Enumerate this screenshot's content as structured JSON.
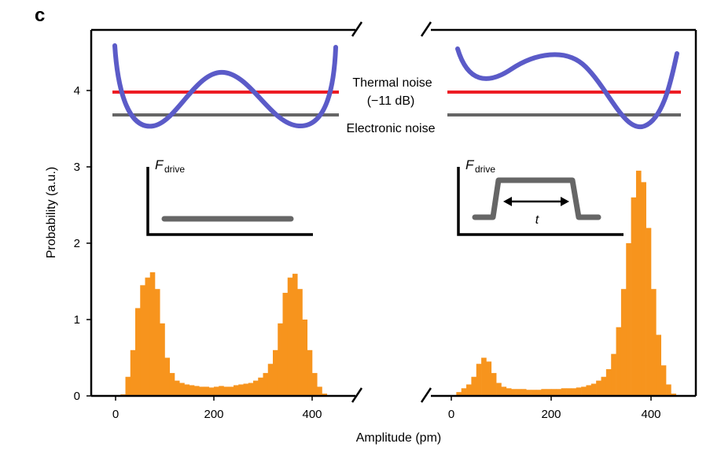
{
  "panel_label": "c",
  "chart_data": {
    "type": "bar",
    "title": "",
    "xlabel": "Amplitude (pm)",
    "ylabel": "Probability (a.u.)",
    "ylim": [
      0,
      4.8
    ],
    "yticks": [
      0,
      1,
      2,
      3,
      4
    ],
    "grid": false,
    "axis_break": true,
    "colors": {
      "histogram": "#f7941d",
      "thermal_noise": "#ed1c24",
      "electronic_noise": "#666666",
      "potential": "#5b5bc8",
      "pulse": "#666666"
    },
    "annotations": {
      "thermal_noise": "Thermal noise",
      "thermal_db": "(−11 dB)",
      "electronic_noise": "Electronic noise"
    },
    "panels": [
      {
        "xlim": [
          -15,
          450
        ],
        "xticks": [
          0,
          200,
          400
        ],
        "drive_label": {
          "main": "F",
          "sub": "drive"
        },
        "pulse": "constant",
        "thermal_noise_level": 3.98,
        "electronic_noise_level": 3.68,
        "histogram": {
          "x": [
            15,
            25,
            35,
            45,
            55,
            65,
            75,
            85,
            95,
            105,
            115,
            125,
            135,
            145,
            155,
            165,
            175,
            185,
            195,
            205,
            215,
            225,
            235,
            245,
            255,
            265,
            275,
            285,
            295,
            305,
            315,
            325,
            335,
            345,
            355,
            365,
            375,
            385,
            395,
            405,
            415,
            425,
            435
          ],
          "values": [
            0.02,
            0.25,
            0.6,
            1.15,
            1.45,
            1.55,
            1.62,
            1.4,
            0.95,
            0.5,
            0.3,
            0.2,
            0.17,
            0.15,
            0.14,
            0.13,
            0.12,
            0.12,
            0.11,
            0.12,
            0.13,
            0.12,
            0.12,
            0.14,
            0.15,
            0.16,
            0.17,
            0.2,
            0.24,
            0.3,
            0.42,
            0.6,
            0.95,
            1.35,
            1.55,
            1.6,
            1.4,
            1.0,
            0.6,
            0.3,
            0.12,
            0.03,
            0.01
          ]
        }
      },
      {
        "xlim": [
          -5,
          470
        ],
        "xticks": [
          0,
          200,
          400
        ],
        "drive_label": {
          "main": "F",
          "sub": "drive",
          "duration": "t"
        },
        "pulse": "step",
        "thermal_noise_level": 3.98,
        "electronic_noise_level": 3.68,
        "histogram": {
          "x": [
            5,
            15,
            25,
            35,
            45,
            55,
            65,
            75,
            85,
            95,
            105,
            115,
            125,
            135,
            145,
            155,
            165,
            175,
            185,
            195,
            205,
            215,
            225,
            235,
            245,
            255,
            265,
            275,
            285,
            295,
            305,
            315,
            325,
            335,
            345,
            355,
            365,
            375,
            385,
            395,
            405,
            415,
            425,
            435,
            445
          ],
          "values": [
            0.01,
            0.05,
            0.1,
            0.15,
            0.25,
            0.42,
            0.5,
            0.45,
            0.3,
            0.17,
            0.12,
            0.1,
            0.09,
            0.09,
            0.09,
            0.08,
            0.08,
            0.08,
            0.09,
            0.09,
            0.09,
            0.09,
            0.1,
            0.1,
            0.1,
            0.11,
            0.12,
            0.14,
            0.16,
            0.2,
            0.25,
            0.35,
            0.55,
            0.9,
            1.4,
            2.0,
            2.6,
            2.95,
            2.8,
            2.2,
            1.4,
            0.8,
            0.4,
            0.15,
            0.03
          ]
        }
      }
    ]
  }
}
